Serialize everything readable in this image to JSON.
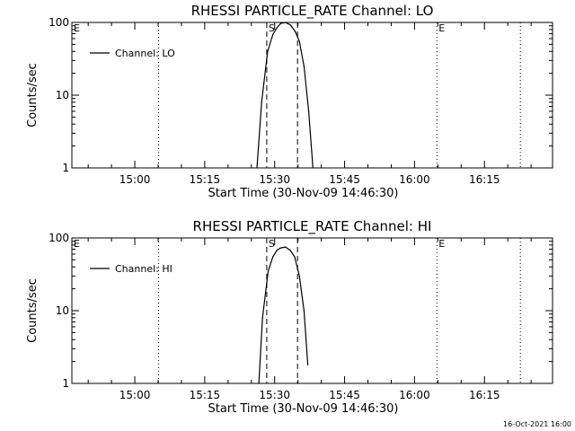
{
  "chart_data": [
    {
      "type": "line",
      "title": "RHESSI PARTICLE_RATE Channel: LO",
      "xlabel": "Start Time (30-Nov-09 14:46:30)",
      "ylabel": "Counts/sec",
      "yscale": "log",
      "ylim": [
        1,
        100
      ],
      "y_ticks": [
        "1",
        "10",
        "100"
      ],
      "x_ticks": [
        "15:00",
        "15:15",
        "15:30",
        "15:45",
        "16:00",
        "16:15"
      ],
      "x_tick_minutes": [
        0,
        15,
        30,
        45,
        60,
        75
      ],
      "x_units": "minutes after 15:00",
      "xlim_minutes": [
        -13.5,
        89.6
      ],
      "grid": false,
      "legend_position": "top-left",
      "series": [
        {
          "name": "Channel: LO",
          "x_minutes": [
            26.2,
            27.2,
            28.5,
            29.6,
            30.5,
            31.3,
            32.3,
            33.4,
            34.4,
            35.3,
            36.3,
            37.3,
            38.2
          ],
          "values": [
            1.0,
            8.0,
            40.0,
            68.0,
            85.0,
            97.0,
            100.0,
            92.0,
            75.0,
            55.0,
            25.0,
            6.0,
            1.0
          ]
        }
      ],
      "markers": [
        {
          "label": "E",
          "x_minutes": -13.5,
          "style": "dotted"
        },
        {
          "label": "",
          "x_minutes": 5.1,
          "style": "dotted"
        },
        {
          "label": "S",
          "x_minutes": 28.3,
          "style": "dashed"
        },
        {
          "label": "",
          "x_minutes": 34.9,
          "style": "dashed"
        },
        {
          "label": "E",
          "x_minutes": 64.8,
          "style": "dotted"
        },
        {
          "label": "",
          "x_minutes": 82.7,
          "style": "dotted"
        }
      ]
    },
    {
      "type": "line",
      "title": "RHESSI PARTICLE_RATE Channel: HI",
      "xlabel": "Start Time (30-Nov-09 14:46:30)",
      "ylabel": "Counts/sec",
      "yscale": "log",
      "ylim": [
        1,
        100
      ],
      "y_ticks": [
        "1",
        "10",
        "100"
      ],
      "x_ticks": [
        "15:00",
        "15:15",
        "15:30",
        "15:45",
        "16:00",
        "16:15"
      ],
      "x_tick_minutes": [
        0,
        15,
        30,
        45,
        60,
        75
      ],
      "x_units": "minutes after 15:00",
      "xlim_minutes": [
        -13.5,
        89.6
      ],
      "grid": false,
      "legend_position": "top-left",
      "series": [
        {
          "name": "Channel: HI",
          "x_minutes": [
            26.6,
            27.4,
            28.6,
            29.6,
            30.5,
            31.3,
            32.3,
            33.3,
            34.3,
            35.3,
            36.3,
            37.1
          ],
          "values": [
            1.0,
            8.0,
            35.0,
            55.0,
            68.0,
            73.0,
            75.0,
            68.0,
            55.0,
            30.0,
            10.0,
            1.8
          ]
        }
      ],
      "markers": [
        {
          "label": "E",
          "x_minutes": -13.5,
          "style": "dotted"
        },
        {
          "label": "",
          "x_minutes": 5.1,
          "style": "dotted"
        },
        {
          "label": "S",
          "x_minutes": 28.3,
          "style": "dashed"
        },
        {
          "label": "",
          "x_minutes": 34.9,
          "style": "dashed"
        },
        {
          "label": "E",
          "x_minutes": 64.8,
          "style": "dotted"
        },
        {
          "label": "",
          "x_minutes": 82.7,
          "style": "dotted"
        }
      ]
    }
  ],
  "footer": {
    "timestamp": "16-Oct-2021 16:00"
  }
}
